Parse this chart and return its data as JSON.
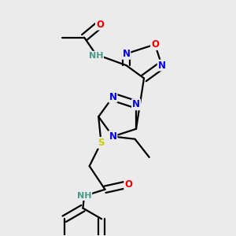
{
  "bg_color": "#ebebeb",
  "atom_colors": {
    "C": "#000000",
    "N": "#0000ee",
    "O": "#ee0000",
    "S": "#cccc00",
    "H": "#4a9a8a"
  },
  "bond_color": "#000000",
  "bond_width": 1.6,
  "figsize": [
    3.0,
    3.0
  ],
  "dpi": 100
}
